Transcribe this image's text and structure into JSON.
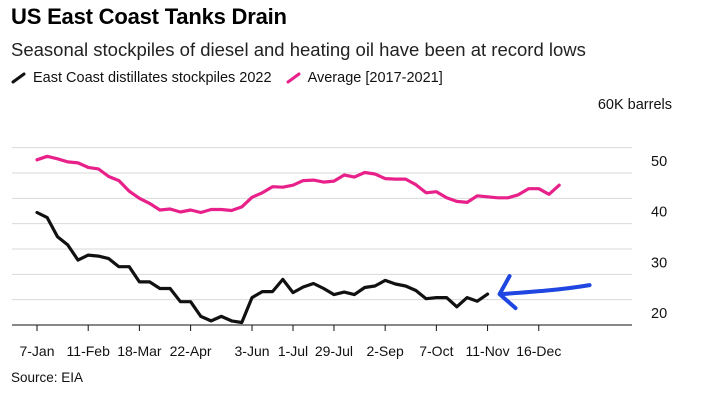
{
  "chart_data": {
    "type": "line",
    "title": "US East Coast Tanks Drain",
    "subtitle": "Seasonal stockpiles of diesel and heating oil have been at record lows",
    "unit_label": "60K barrels",
    "source": "Source: EIA",
    "ylim": [
      17,
      56
    ],
    "y_ticks": [
      20,
      30,
      40,
      50
    ],
    "grid": true,
    "legend_position": "top-left",
    "x_ticks": [
      "7-Jan",
      "11-Feb",
      "18-Mar",
      "22-Apr",
      "3-Jun",
      "1-Jul",
      "29-Jul",
      "2-Sep",
      "7-Oct",
      "11-Nov",
      "16-Dec"
    ],
    "x_tick_weeks": [
      0,
      5,
      10,
      15,
      21,
      25,
      29,
      34,
      39,
      44,
      49
    ],
    "series": [
      {
        "name": "East Coast distillates stockpiles 2022",
        "color": "#111111",
        "weeks": [
          0,
          1,
          2,
          3,
          4,
          5,
          6,
          7,
          8,
          9,
          10,
          11,
          12,
          13,
          14,
          15,
          16,
          17,
          18,
          19,
          20,
          21,
          22,
          23,
          24,
          25,
          26,
          27,
          28,
          29,
          30,
          31,
          32,
          33,
          34,
          35,
          36,
          37,
          38,
          39,
          40,
          41,
          42,
          43,
          44
        ],
        "values": [
          42.2,
          41.2,
          37.4,
          35.8,
          32.8,
          33.8,
          33.6,
          33.1,
          31.5,
          31.5,
          28.5,
          28.5,
          27.2,
          27.2,
          24.6,
          24.6,
          21.7,
          20.8,
          21.7,
          20.8,
          20.5,
          25.4,
          26.6,
          26.6,
          29.0,
          26.4,
          27.5,
          28.2,
          27.2,
          26.0,
          26.5,
          26.0,
          27.4,
          27.7,
          28.8,
          28.1,
          27.7,
          26.8,
          25.2,
          25.4,
          25.4,
          23.6,
          25.4,
          24.7,
          26.1
        ]
      },
      {
        "name": "Average [2017-2021]",
        "color": "#e8218a",
        "weeks": [
          0,
          1,
          2,
          3,
          4,
          5,
          6,
          7,
          8,
          9,
          10,
          11,
          12,
          13,
          14,
          15,
          16,
          17,
          18,
          19,
          20,
          21,
          22,
          23,
          24,
          25,
          26,
          27,
          28,
          29,
          30,
          31,
          32,
          33,
          34,
          35,
          36,
          37,
          38,
          39,
          40,
          41,
          42,
          43,
          44,
          45,
          46,
          47,
          48,
          49,
          50,
          51
        ],
        "values": [
          52.6,
          53.3,
          52.8,
          52.2,
          52.0,
          51.1,
          50.8,
          49.3,
          48.5,
          46.4,
          45.0,
          44.0,
          42.7,
          42.9,
          42.3,
          42.7,
          42.2,
          42.8,
          42.8,
          42.6,
          43.3,
          45.2,
          46.1,
          47.3,
          47.2,
          47.6,
          48.5,
          48.6,
          48.2,
          48.4,
          49.6,
          49.2,
          50.1,
          49.8,
          48.9,
          48.8,
          48.8,
          47.7,
          46.1,
          46.3,
          45.1,
          44.4,
          44.2,
          45.5,
          45.3,
          45.1,
          45.1,
          45.7,
          46.9,
          46.9,
          45.8,
          47.6
        ]
      }
    ],
    "annotation": {
      "type": "blue-arrow",
      "pointing_to": "latest 2022 value"
    }
  }
}
